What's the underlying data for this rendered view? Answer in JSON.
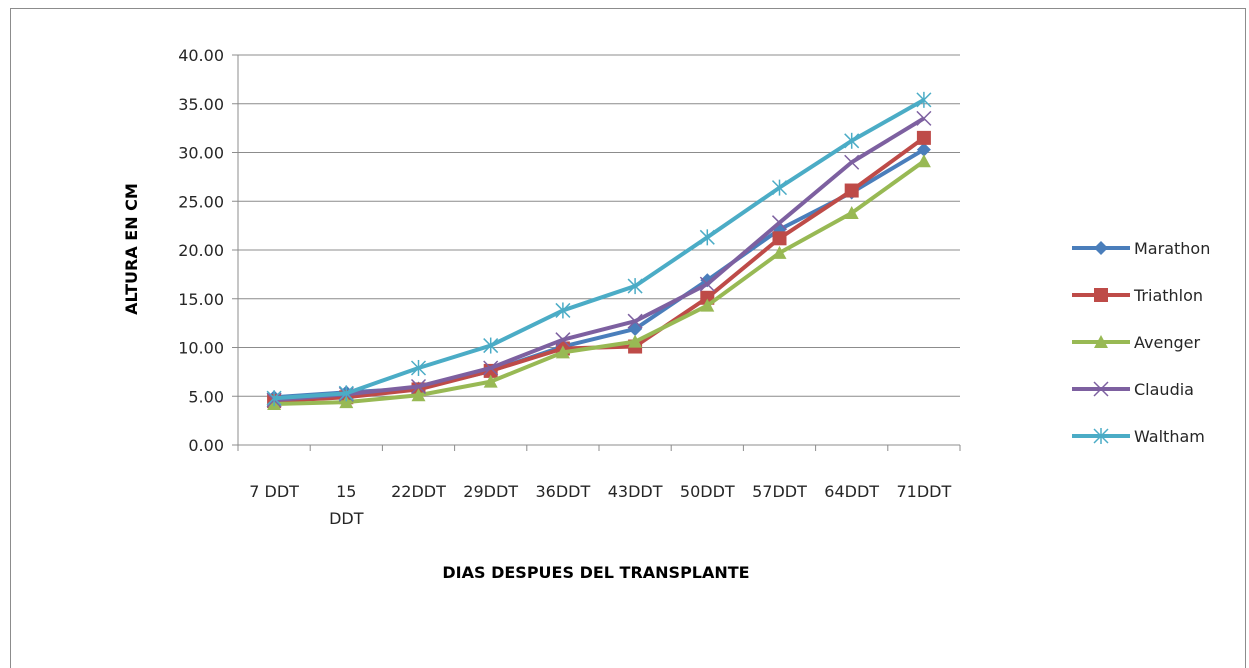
{
  "chart_data": {
    "type": "line",
    "title": "",
    "xlabel": "DIAS DESPUES DEL TRANSPLANTE",
    "ylabel": "ALTURA EN CM",
    "ylim": [
      0,
      40
    ],
    "yticks": [
      "0.00",
      "5.00",
      "10.00",
      "15.00",
      "20.00",
      "25.00",
      "30.00",
      "35.00",
      "40.00"
    ],
    "categories": [
      [
        "7 DDT"
      ],
      [
        "15",
        "DDT"
      ],
      [
        "22DDT"
      ],
      [
        "29DDT"
      ],
      [
        "36DDT"
      ],
      [
        "43DDT"
      ],
      [
        "50DDT"
      ],
      [
        "57DDT"
      ],
      [
        "64DDT"
      ],
      [
        "71DDT"
      ]
    ],
    "grid": true,
    "legend_position": "right",
    "series": [
      {
        "name": "Marathon",
        "color": "#4a7ebb",
        "marker": "diamond",
        "values": [
          4.9,
          5.4,
          5.8,
          7.6,
          10.1,
          11.9,
          16.9,
          22.1,
          25.9,
          30.3
        ]
      },
      {
        "name": "Triathlon",
        "color": "#be4b48",
        "marker": "square",
        "values": [
          4.5,
          4.9,
          5.7,
          7.6,
          9.9,
          10.1,
          15.1,
          21.2,
          26.1,
          31.5
        ]
      },
      {
        "name": "Avenger",
        "color": "#98b954",
        "marker": "triangle",
        "values": [
          4.2,
          4.4,
          5.1,
          6.5,
          9.5,
          10.6,
          14.3,
          19.7,
          23.8,
          29.1
        ]
      },
      {
        "name": "Claudia",
        "color": "#7d60a0",
        "marker": "x",
        "values": [
          4.6,
          5.2,
          6.0,
          7.9,
          10.8,
          12.7,
          16.5,
          22.8,
          29.0,
          33.5
        ]
      },
      {
        "name": "Waltham",
        "color": "#4bacc6",
        "marker": "star",
        "values": [
          4.8,
          5.3,
          7.9,
          10.2,
          13.8,
          16.3,
          21.3,
          26.4,
          31.2,
          35.4
        ]
      }
    ]
  }
}
